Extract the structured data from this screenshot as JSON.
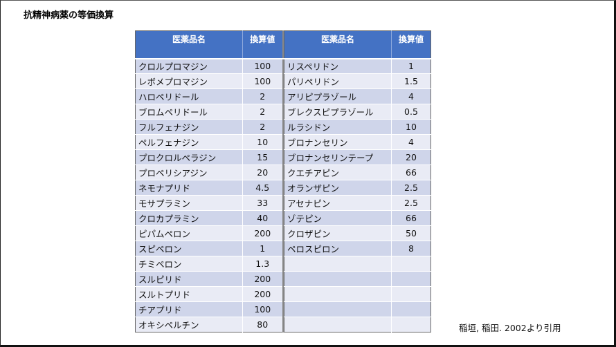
{
  "title": "抗精神病薬の等価換算",
  "tables": {
    "left": {
      "headers": [
        "医薬品名",
        "換算値"
      ],
      "rows": [
        {
          "name": "クロルプロマジン",
          "value": "100"
        },
        {
          "name": "レボメプロマジン",
          "value": "100"
        },
        {
          "name": "ハロペリドール",
          "value": "2"
        },
        {
          "name": "ブロムペリドール",
          "value": "2"
        },
        {
          "name": "フルフェナジン",
          "value": "2"
        },
        {
          "name": "ペルフェナジン",
          "value": "10"
        },
        {
          "name": "プロクロルペラジン",
          "value": "15"
        },
        {
          "name": "プロペリシアジン",
          "value": "20"
        },
        {
          "name": "ネモナプリド",
          "value": "4.5"
        },
        {
          "name": "モサプラミン",
          "value": "33"
        },
        {
          "name": "クロカプラミン",
          "value": "40"
        },
        {
          "name": "ピパムペロン",
          "value": "200"
        },
        {
          "name": "スピペロン",
          "value": "1"
        },
        {
          "name": "チミペロン",
          "value": "1.3"
        },
        {
          "name": "スルピリド",
          "value": "200"
        },
        {
          "name": "スルトプリド",
          "value": "200"
        },
        {
          "name": "チアプリド",
          "value": "100"
        },
        {
          "name": "オキシペルチン",
          "value": "80"
        }
      ]
    },
    "right": {
      "headers": [
        "医薬品名",
        "換算値"
      ],
      "rows": [
        {
          "name": "リスペリドン",
          "value": "1"
        },
        {
          "name": "パリペリドン",
          "value": "1.5"
        },
        {
          "name": "アリピプラゾール",
          "value": "4"
        },
        {
          "name": "ブレクスピプラゾール",
          "value": "0.5"
        },
        {
          "name": "ルラシドン",
          "value": "10"
        },
        {
          "name": "ブロナンセリン",
          "value": "4"
        },
        {
          "name": "ブロナンセリンテープ",
          "value": "20"
        },
        {
          "name": "クエチアピン",
          "value": "66"
        },
        {
          "name": "オランザピン",
          "value": "2.5"
        },
        {
          "name": "アセナピン",
          "value": "2.5"
        },
        {
          "name": "ゾテピン",
          "value": "66"
        },
        {
          "name": "クロザピン",
          "value": "50"
        },
        {
          "name": "ペロスピロン",
          "value": "8"
        },
        {
          "name": "",
          "value": ""
        },
        {
          "name": "",
          "value": ""
        },
        {
          "name": "",
          "value": ""
        },
        {
          "name": "",
          "value": ""
        },
        {
          "name": "",
          "value": ""
        }
      ]
    }
  },
  "citation": "稲垣, 稲田. 2002より引用",
  "colors": {
    "header_bg": "#4472c4",
    "row_odd": "#cfd5ea",
    "row_even": "#e9ebf5"
  }
}
